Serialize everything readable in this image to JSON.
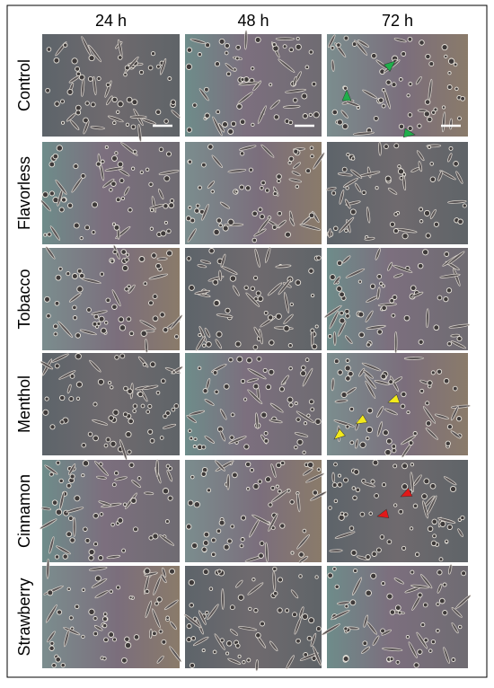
{
  "columns": [
    "24 h",
    "48 h",
    "72 h"
  ],
  "rows": [
    "Control",
    "Flavorless",
    "Tobacco",
    "Menthol",
    "Cinnamon",
    "Strawberry"
  ]
}
